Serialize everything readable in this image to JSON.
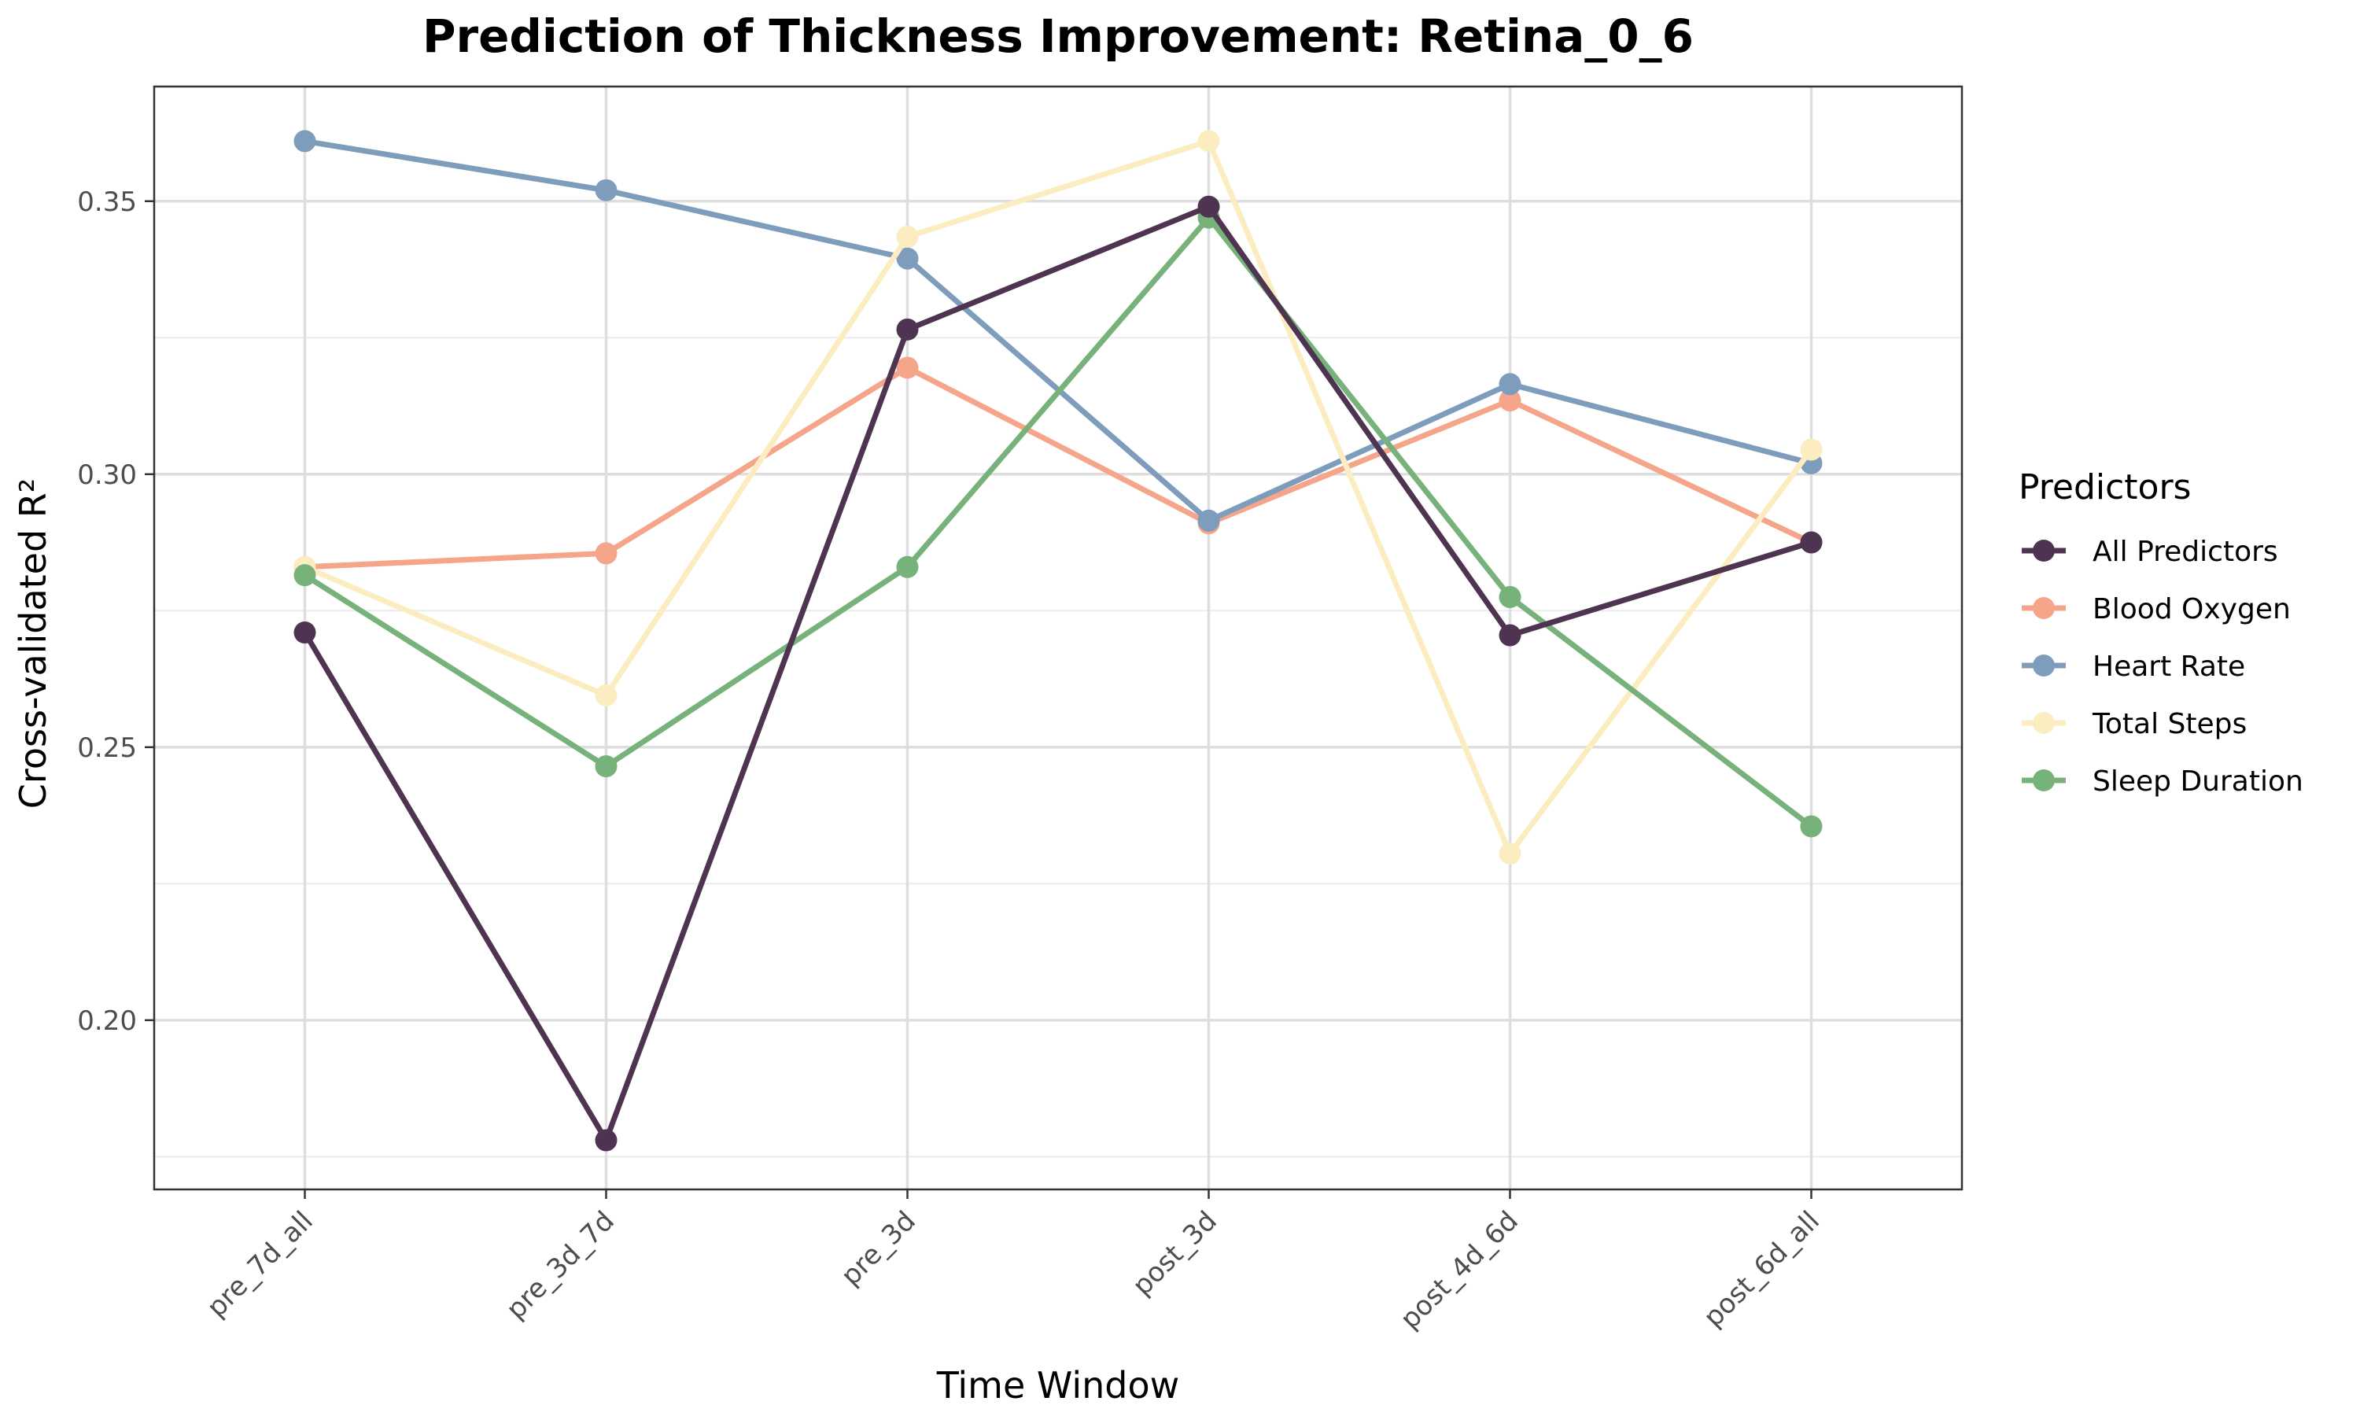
{
  "chart_data": {
    "type": "line",
    "title": "Prediction of Thickness Improvement: Retina_0_6",
    "xlabel": "Time Window",
    "ylabel": "Cross-validated R²",
    "categories": [
      "pre_7d_all",
      "pre_3d_7d",
      "pre_3d",
      "post_3d",
      "post_4d_6d",
      "post_6d_all"
    ],
    "ylim": [
      0.169,
      0.371
    ],
    "yticks": [
      0.2,
      0.25,
      0.3,
      0.35
    ],
    "ytick_labels": [
      "0.20",
      "0.25",
      "0.30",
      "0.35"
    ],
    "grid": true,
    "legend_title": "Predictors",
    "legend_position": "right",
    "series": [
      {
        "name": "Blood Oxygen",
        "color": "#F4A58A",
        "values": [
          0.283,
          0.2855,
          0.3195,
          0.291,
          0.3135,
          0.2875
        ]
      },
      {
        "name": "Heart Rate",
        "color": "#7E9CBB",
        "values": [
          0.361,
          0.352,
          0.3395,
          0.2915,
          0.3165,
          0.302
        ]
      },
      {
        "name": "Total Steps",
        "color": "#FCEDC0",
        "values": [
          0.283,
          0.2595,
          0.3435,
          0.361,
          0.2305,
          0.3045
        ]
      },
      {
        "name": "Sleep Duration",
        "color": "#76B279",
        "values": [
          0.2815,
          0.2465,
          0.283,
          0.347,
          0.2775,
          0.2355
        ]
      },
      {
        "name": "All Predictors",
        "color": "#4E3450",
        "values": [
          0.271,
          0.178,
          0.3265,
          0.349,
          0.2705,
          0.2875
        ]
      }
    ],
    "legend_order": [
      "All Predictors",
      "Blood Oxygen",
      "Heart Rate",
      "Total Steps",
      "Sleep Duration"
    ]
  }
}
